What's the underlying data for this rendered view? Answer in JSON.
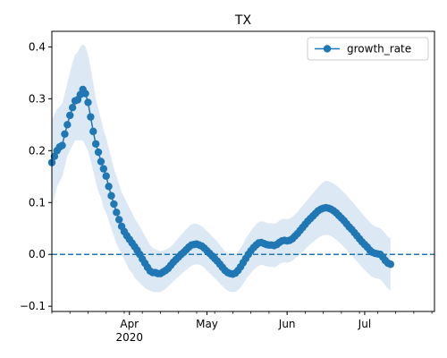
{
  "chart_data": {
    "type": "line",
    "title": "TX",
    "xlabel": "",
    "ylabel": "",
    "x_domain": [
      "2020-03-02",
      "2020-07-28"
    ],
    "ylim": [
      -0.11,
      0.43
    ],
    "yticks": [
      -0.1,
      0.0,
      0.1,
      0.2,
      0.3,
      0.4
    ],
    "ytick_labels": [
      "−0.1",
      "0.0",
      "0.1",
      "0.2",
      "0.3",
      "0.4"
    ],
    "xticks_major": [
      {
        "date": "2020-04-01",
        "label": "Apr",
        "sublabel": "2020"
      },
      {
        "date": "2020-05-01",
        "label": "May",
        "sublabel": ""
      },
      {
        "date": "2020-06-01",
        "label": "Jun",
        "sublabel": ""
      },
      {
        "date": "2020-07-01",
        "label": "Jul",
        "sublabel": ""
      }
    ],
    "xticks_minor_start": "2020-03-02",
    "xticks_minor_interval_days": 7,
    "reference_line": {
      "y": 0.0,
      "style": "dashed"
    },
    "legend": {
      "placement": "top-right",
      "entries": [
        "growth_rate"
      ]
    },
    "grid": false,
    "colors": {
      "line": "#1f77b4",
      "band": "#dce8f4"
    },
    "series": [
      {
        "name": "growth_rate",
        "x_start": "2020-03-02",
        "x_step_days": 1,
        "values": [
          0.177,
          0.189,
          0.2,
          0.207,
          0.21,
          0.232,
          0.25,
          0.268,
          0.283,
          0.296,
          0.298,
          0.308,
          0.318,
          0.31,
          0.293,
          0.265,
          0.237,
          0.213,
          0.197,
          0.179,
          0.165,
          0.151,
          0.131,
          0.113,
          0.097,
          0.081,
          0.067,
          0.054,
          0.044,
          0.036,
          0.029,
          0.022,
          0.015,
          0.008,
          0.0,
          -0.009,
          -0.017,
          -0.025,
          -0.032,
          -0.035,
          -0.035,
          -0.037,
          -0.037,
          -0.034,
          -0.031,
          -0.027,
          -0.021,
          -0.015,
          -0.01,
          -0.005,
          0.0,
          0.004,
          0.009,
          0.014,
          0.018,
          0.019,
          0.02,
          0.018,
          0.016,
          0.012,
          0.007,
          0.002,
          -0.003,
          -0.008,
          -0.013,
          -0.019,
          -0.025,
          -0.031,
          -0.035,
          -0.037,
          -0.038,
          -0.036,
          -0.031,
          -0.024,
          -0.016,
          -0.008,
          0.0,
          0.007,
          0.013,
          0.018,
          0.022,
          0.023,
          0.021,
          0.019,
          0.018,
          0.018,
          0.017,
          0.019,
          0.023,
          0.026,
          0.027,
          0.026,
          0.027,
          0.03,
          0.035,
          0.04,
          0.046,
          0.052,
          0.058,
          0.064,
          0.069,
          0.074,
          0.079,
          0.084,
          0.087,
          0.089,
          0.09,
          0.089,
          0.087,
          0.084,
          0.08,
          0.075,
          0.07,
          0.065,
          0.059,
          0.053,
          0.048,
          0.042,
          0.036,
          0.03,
          0.024,
          0.019,
          0.014,
          0.008,
          0.004,
          0.002,
          0.001,
          0.0,
          -0.005,
          -0.012,
          -0.017,
          -0.019
        ]
      }
    ],
    "band": {
      "x_start": "2020-03-02",
      "x_step_days": 1,
      "lower": [
        0.09,
        0.11,
        0.13,
        0.14,
        0.15,
        0.17,
        0.19,
        0.2,
        0.21,
        0.22,
        0.22,
        0.22,
        0.22,
        0.21,
        0.2,
        0.18,
        0.16,
        0.14,
        0.12,
        0.11,
        0.09,
        0.08,
        0.065,
        0.05,
        0.035,
        0.02,
        0.01,
        0.0,
        -0.01,
        -0.02,
        -0.03,
        -0.035,
        -0.045,
        -0.05,
        -0.055,
        -0.06,
        -0.065,
        -0.068,
        -0.07,
        -0.072,
        -0.073,
        -0.073,
        -0.072,
        -0.07,
        -0.066,
        -0.062,
        -0.057,
        -0.052,
        -0.047,
        -0.043,
        -0.038,
        -0.034,
        -0.03,
        -0.026,
        -0.022,
        -0.02,
        -0.019,
        -0.02,
        -0.022,
        -0.026,
        -0.031,
        -0.036,
        -0.041,
        -0.046,
        -0.051,
        -0.056,
        -0.061,
        -0.066,
        -0.07,
        -0.072,
        -0.073,
        -0.072,
        -0.069,
        -0.064,
        -0.057,
        -0.049,
        -0.042,
        -0.036,
        -0.03,
        -0.026,
        -0.022,
        -0.02,
        -0.021,
        -0.023,
        -0.024,
        -0.024,
        -0.025,
        -0.023,
        -0.019,
        -0.016,
        -0.015,
        -0.016,
        -0.015,
        -0.012,
        -0.008,
        -0.004,
        0.0,
        0.005,
        0.01,
        0.015,
        0.02,
        0.024,
        0.028,
        0.032,
        0.035,
        0.037,
        0.038,
        0.037,
        0.035,
        0.032,
        0.028,
        0.024,
        0.019,
        0.014,
        0.009,
        0.003,
        -0.002,
        -0.008,
        -0.013,
        -0.019,
        -0.025,
        -0.03,
        -0.035,
        -0.04,
        -0.044,
        -0.046,
        -0.047,
        -0.048,
        -0.053,
        -0.06,
        -0.066,
        -0.07
      ],
      "upper": [
        0.26,
        0.27,
        0.28,
        0.285,
        0.29,
        0.31,
        0.33,
        0.35,
        0.37,
        0.385,
        0.39,
        0.4,
        0.405,
        0.4,
        0.385,
        0.36,
        0.33,
        0.3,
        0.28,
        0.26,
        0.24,
        0.225,
        0.205,
        0.185,
        0.165,
        0.15,
        0.135,
        0.12,
        0.11,
        0.1,
        0.09,
        0.08,
        0.07,
        0.062,
        0.054,
        0.045,
        0.036,
        0.027,
        0.018,
        0.012,
        0.01,
        0.008,
        0.006,
        0.007,
        0.009,
        0.011,
        0.015,
        0.02,
        0.026,
        0.032,
        0.038,
        0.043,
        0.049,
        0.054,
        0.058,
        0.059,
        0.059,
        0.057,
        0.054,
        0.05,
        0.045,
        0.04,
        0.035,
        0.03,
        0.025,
        0.018,
        0.012,
        0.006,
        0.002,
        -0.001,
        -0.002,
        0.0,
        0.005,
        0.012,
        0.02,
        0.03,
        0.038,
        0.046,
        0.052,
        0.058,
        0.062,
        0.064,
        0.063,
        0.061,
        0.06,
        0.06,
        0.059,
        0.061,
        0.065,
        0.068,
        0.069,
        0.068,
        0.069,
        0.072,
        0.077,
        0.082,
        0.088,
        0.094,
        0.1,
        0.106,
        0.112,
        0.118,
        0.124,
        0.13,
        0.135,
        0.139,
        0.142,
        0.141,
        0.139,
        0.136,
        0.133,
        0.129,
        0.124,
        0.119,
        0.114,
        0.108,
        0.103,
        0.097,
        0.091,
        0.085,
        0.079,
        0.073,
        0.068,
        0.062,
        0.057,
        0.054,
        0.052,
        0.051,
        0.046,
        0.04,
        0.034,
        0.031
      ]
    }
  }
}
